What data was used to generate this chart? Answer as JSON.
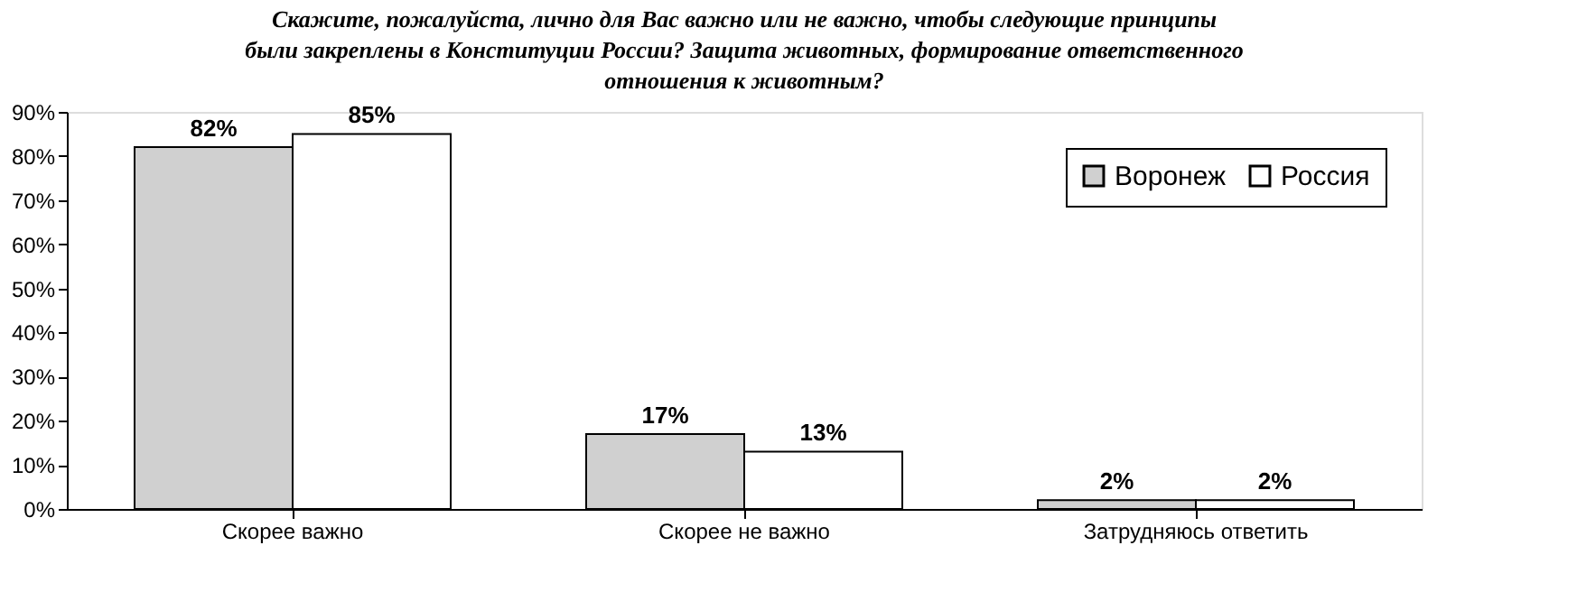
{
  "chart_data": {
    "type": "bar",
    "title": "Скажите, пожалуйста, лично для Вас важно или не важно, чтобы следующие принципы были закреплены в Конституции России? Защита животных, формирование ответственного отношения к животным?",
    "categories": [
      "Скорее важно",
      "Скорее не важно",
      "Затрудняюсь ответить"
    ],
    "series": [
      {
        "name": "Воронеж",
        "color": "#d0d0d0",
        "values": [
          82,
          17,
          2
        ],
        "value_labels": [
          "82%",
          "17%",
          "2%"
        ]
      },
      {
        "name": "Россия",
        "color": "#ffffff",
        "values": [
          85,
          13,
          2
        ],
        "value_labels": [
          "85%",
          "13%",
          "2%"
        ]
      }
    ],
    "ylim": [
      0,
      90
    ],
    "yticks": [
      {
        "value": 0,
        "label": "0%"
      },
      {
        "value": 10,
        "label": "10%"
      },
      {
        "value": 20,
        "label": "20%"
      },
      {
        "value": 30,
        "label": "30%"
      },
      {
        "value": 40,
        "label": "40%"
      },
      {
        "value": 50,
        "label": "50%"
      },
      {
        "value": 60,
        "label": "60%"
      },
      {
        "value": 70,
        "label": "70%"
      },
      {
        "value": 80,
        "label": "80%"
      },
      {
        "value": 90,
        "label": "90%"
      }
    ],
    "grid": false,
    "legend": "top right"
  }
}
